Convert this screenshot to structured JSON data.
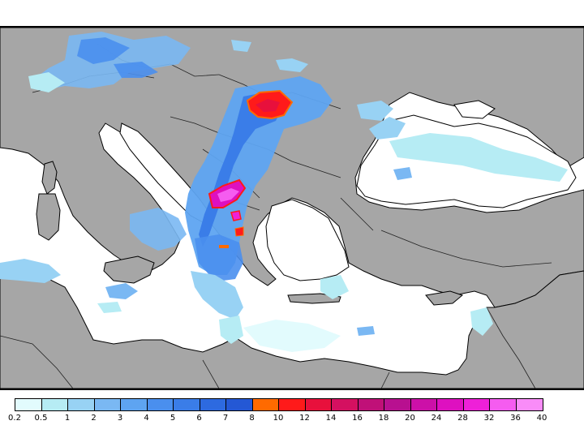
{
  "map": {
    "colors": {
      "sea": "#ffffff",
      "land": "#a6a6a6",
      "coast": "#000000",
      "border": "#222222"
    }
  },
  "legend": {
    "colors": [
      "#e2fbfd",
      "#b6ecf4",
      "#98d2f4",
      "#7ab8f3",
      "#5ea4f1",
      "#4a8fee",
      "#3a7de8",
      "#2d6ae0",
      "#2458d5",
      "#ff6a00",
      "#ff1a1a",
      "#e8103c",
      "#d41060",
      "#c01078",
      "#b81090",
      "#cc10a8",
      "#de10c0",
      "#ee20d8",
      "#f55cf0",
      "#f98cf8"
    ],
    "labels": [
      "0.2",
      "0.5",
      "1",
      "2",
      "3",
      "4",
      "5",
      "6",
      "7",
      "8",
      "10",
      "12",
      "14",
      "16",
      "18",
      "20",
      "24",
      "28",
      "32",
      "36",
      "40"
    ]
  }
}
